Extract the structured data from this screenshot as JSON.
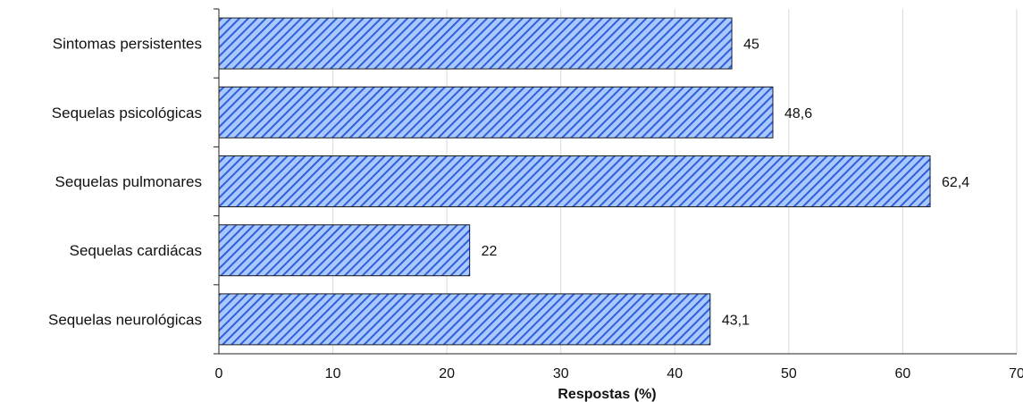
{
  "chart_data": {
    "type": "bar",
    "orientation": "horizontal",
    "categories": [
      "Sintomas persistentes",
      "Sequelas psicológicas",
      "Sequelas pulmonares",
      "Sequelas cardiácas",
      "Sequelas neurológicas"
    ],
    "values": [
      45,
      48.6,
      62.4,
      22,
      43.1
    ],
    "value_labels": [
      "45",
      "48,6",
      "62,4",
      "22",
      "43,1"
    ],
    "xlabel": "Respostas (%)",
    "ylabel": "",
    "xlim": [
      0,
      70
    ],
    "xticks": [
      0,
      10,
      20,
      30,
      40,
      50,
      60,
      70
    ],
    "grid": "vertical",
    "colors": {
      "bar_fill": "#a9c8ff",
      "bar_hatch": "#2f5fd8",
      "bar_border": "#1a1a1a",
      "grid": "#d9d9d9",
      "axis": "#222222"
    }
  }
}
